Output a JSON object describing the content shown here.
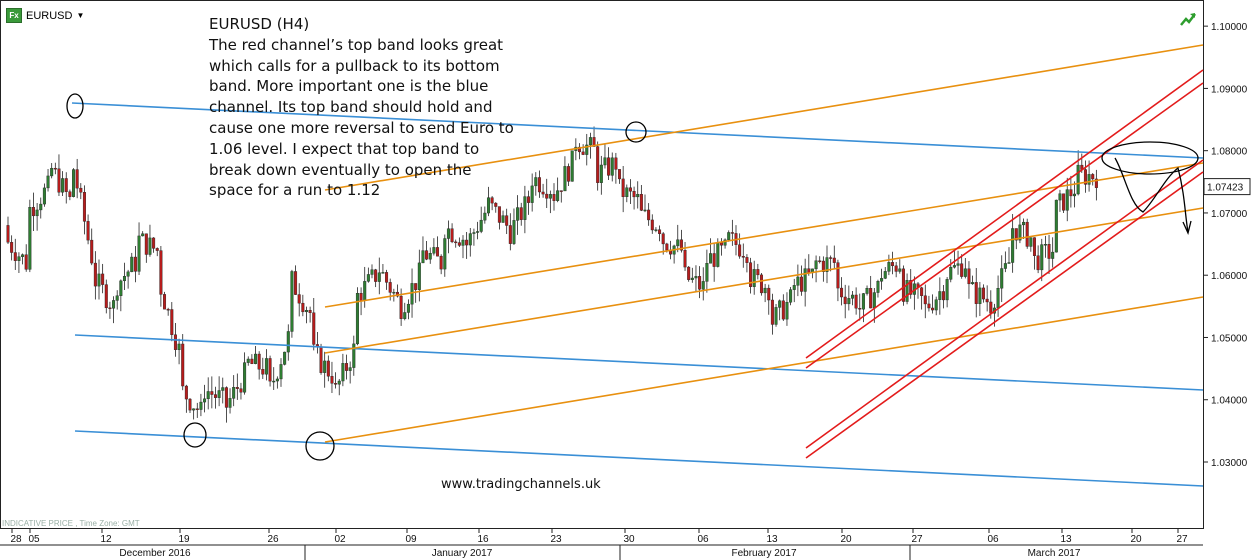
{
  "toolbar": {
    "symbol": "EURUSD",
    "symbol_icon": "fx-icon"
  },
  "annotation": {
    "title": "EURUSD (H4)",
    "body": "The red channel’s top band looks great\nwhich calls for a pullback to its bottom\nband. More important one is the blue\nchannel. Its top band should hold and\ncause one more reversal to send Euro to\n1.06 level. I expect that top band to\nbreak down eventually to open the\nspace for a run to 1.12"
  },
  "watermark": "www.tradingchannels.uk",
  "status_text": "INDICATIVE PRICE , Time Zone: GMT",
  "chart_data": {
    "type": "candlestick",
    "symbol": "EURUSD",
    "timeframe": "H4",
    "current_price": "1.07423",
    "ylim": [
      1.02,
      1.105
    ],
    "y_ticks": [
      "1.10000",
      "1.09000",
      "1.08000",
      "1.07000",
      "1.06000",
      "1.05000",
      "1.04000",
      "1.03000"
    ],
    "x_ticks": [
      "28",
      "05",
      "12",
      "19",
      "26",
      "02",
      "09",
      "16",
      "23",
      "30",
      "06",
      "13",
      "20",
      "27",
      "06",
      "13",
      "20",
      "27"
    ],
    "months": [
      "December 2016",
      "January 2017",
      "February 2017",
      "March 2017"
    ],
    "colors": {
      "up": "#2e7d32",
      "down": "#b71c1c",
      "blue_channel": "#3a8fd6",
      "orange_lines": "#e8900f",
      "red_channel": "#e31b1b"
    },
    "price_path": [
      [
        1.068,
        1.066
      ],
      [
        1.062,
        1.07
      ],
      [
        1.074,
        1.078
      ],
      [
        1.072,
        1.08
      ],
      [
        1.063,
        1.06
      ],
      [
        1.055,
        1.058
      ],
      [
        1.062,
        1.066
      ],
      [
        1.064,
        1.06
      ],
      [
        1.048,
        1.042
      ],
      [
        1.038,
        1.042
      ],
      [
        1.04,
        1.038
      ],
      [
        1.044,
        1.046
      ],
      [
        1.045,
        1.04
      ],
      [
        1.05,
        1.06
      ],
      [
        1.054,
        1.048
      ],
      [
        1.044,
        1.04
      ],
      [
        1.048,
        1.056
      ],
      [
        1.06,
        1.062
      ],
      [
        1.056,
        1.054
      ],
      [
        1.06,
        1.064
      ],
      [
        1.062,
        1.068
      ],
      [
        1.066,
        1.064
      ],
      [
        1.07,
        1.072
      ],
      [
        1.068,
        1.066
      ],
      [
        1.072,
        1.076
      ],
      [
        1.074,
        1.072
      ],
      [
        1.078,
        1.082
      ],
      [
        1.08,
        1.076
      ],
      [
        1.078,
        1.074
      ],
      [
        1.072,
        1.07
      ],
      [
        1.068,
        1.066
      ],
      [
        1.064,
        1.06
      ],
      [
        1.058,
        1.062
      ],
      [
        1.064,
        1.066
      ],
      [
        1.064,
        1.06
      ],
      [
        1.058,
        1.052
      ],
      [
        1.056,
        1.058
      ],
      [
        1.06,
        1.062
      ],
      [
        1.062,
        1.058
      ],
      [
        1.056,
        1.054
      ],
      [
        1.058,
        1.06
      ],
      [
        1.062,
        1.058
      ],
      [
        1.056,
        1.054
      ],
      [
        1.058,
        1.06
      ],
      [
        1.062,
        1.058
      ],
      [
        1.056,
        1.054
      ],
      [
        1.062,
        1.068
      ],
      [
        1.066,
        1.062
      ],
      [
        1.064,
        1.07
      ],
      [
        1.074,
        1.076
      ],
      [
        1.076,
        1.074
      ]
    ]
  }
}
